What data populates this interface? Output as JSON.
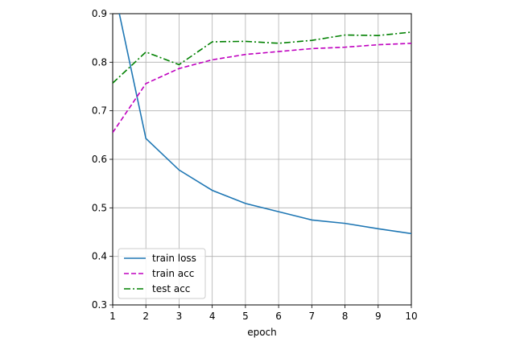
{
  "chart_data": {
    "type": "line",
    "title": "",
    "xlabel": "epoch",
    "ylabel": "",
    "xlim": [
      1,
      10
    ],
    "ylim": [
      0.3,
      0.9
    ],
    "xticks": [
      "1",
      "2",
      "3",
      "4",
      "5",
      "6",
      "7",
      "8",
      "9",
      "10"
    ],
    "yticks": [
      "0.3",
      "0.4",
      "0.5",
      "0.6",
      "0.7",
      "0.8",
      "0.9"
    ],
    "grid": true,
    "legend_position": "bottom-left",
    "series": [
      {
        "name": "train loss",
        "color": "#1f77b4",
        "style": "solid",
        "x": [
          1.2,
          2,
          3,
          4,
          5,
          6,
          7,
          8,
          9,
          10
        ],
        "y": [
          0.9,
          0.643,
          0.578,
          0.536,
          0.509,
          0.492,
          0.475,
          0.468,
          0.457,
          0.447
        ]
      },
      {
        "name": "train acc",
        "color": "#bf00bf",
        "style": "dashed",
        "x": [
          1,
          2,
          3,
          4,
          5,
          6,
          7,
          8,
          9,
          10
        ],
        "y": [
          0.655,
          0.756,
          0.787,
          0.805,
          0.816,
          0.822,
          0.828,
          0.831,
          0.836,
          0.839
        ]
      },
      {
        "name": "test acc",
        "color": "#008000",
        "style": "dashdot",
        "x": [
          1,
          2,
          3,
          4,
          5,
          6,
          7,
          8,
          9,
          10
        ],
        "y": [
          0.757,
          0.821,
          0.795,
          0.842,
          0.843,
          0.839,
          0.845,
          0.856,
          0.855,
          0.862
        ]
      }
    ]
  }
}
